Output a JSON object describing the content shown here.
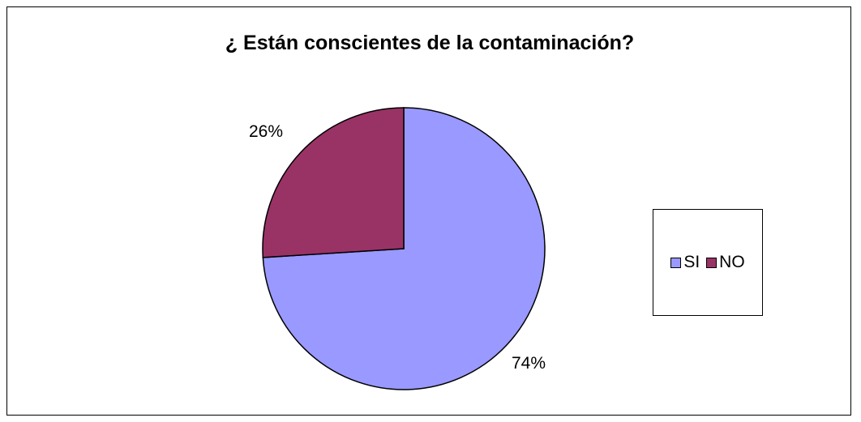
{
  "chart_data": {
    "type": "pie",
    "title": "¿ Están conscientes de la contaminación?",
    "categories": [
      "SI",
      "NO"
    ],
    "values": [
      74,
      26
    ],
    "data_labels": [
      "74%",
      "26%"
    ],
    "colors": [
      "#9999ff",
      "#993366"
    ],
    "legend_position": "right"
  }
}
